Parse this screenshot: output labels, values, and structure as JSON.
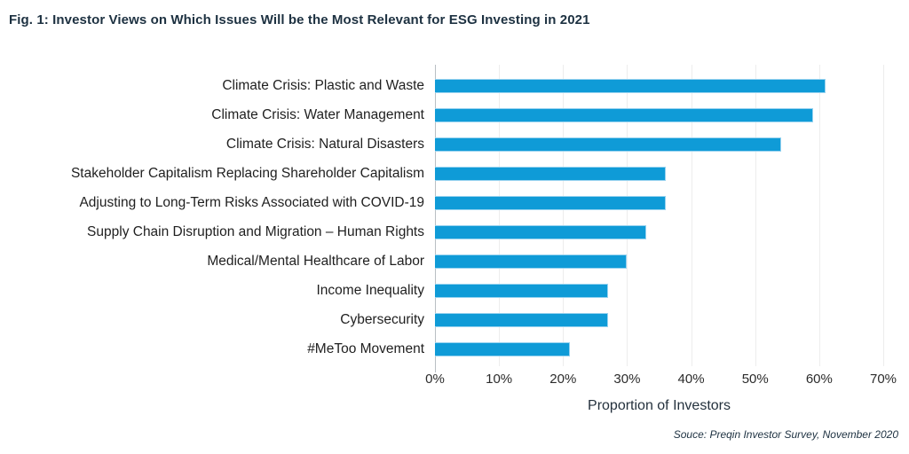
{
  "title": "Fig. 1: Investor Views on Which Issues Will be the Most Relevant for ESG Investing in 2021",
  "source": "Souce: Preqin Investor Survey, November 2020",
  "chart_data": {
    "type": "bar",
    "orientation": "horizontal",
    "title": "Fig. 1: Investor Views on Which Issues Will be the Most Relevant for ESG Investing in 2021",
    "categories": [
      "Climate Crisis: Plastic and Waste",
      "Climate Crisis: Water Management",
      "Climate Crisis: Natural Disasters",
      "Stakeholder Capitalism Replacing Shareholder Capitalism",
      "Adjusting to Long-Term Risks Associated with COVID-19",
      "Supply Chain Disruption and Migration – Human Rights",
      "Medical/Mental Healthcare of Labor",
      "Income Inequality",
      "Cybersecurity",
      "#MeToo Movement"
    ],
    "values": [
      61,
      59,
      54,
      36,
      36,
      33,
      30,
      27,
      27,
      21
    ],
    "xlabel": "Proportion of Investors",
    "ylabel": "",
    "xlim": [
      0,
      70
    ],
    "xticks": [
      "0%",
      "10%",
      "20%",
      "30%",
      "40%",
      "50%",
      "60%",
      "70%"
    ],
    "grid": "vertical-light",
    "legend": "none",
    "bar_color": "#0f9bd7",
    "bar_border_color": "#97d2ef",
    "axis_line_color": "#b9bfc4",
    "gridline_color": "#ededed",
    "title_color": "#1d3141"
  }
}
